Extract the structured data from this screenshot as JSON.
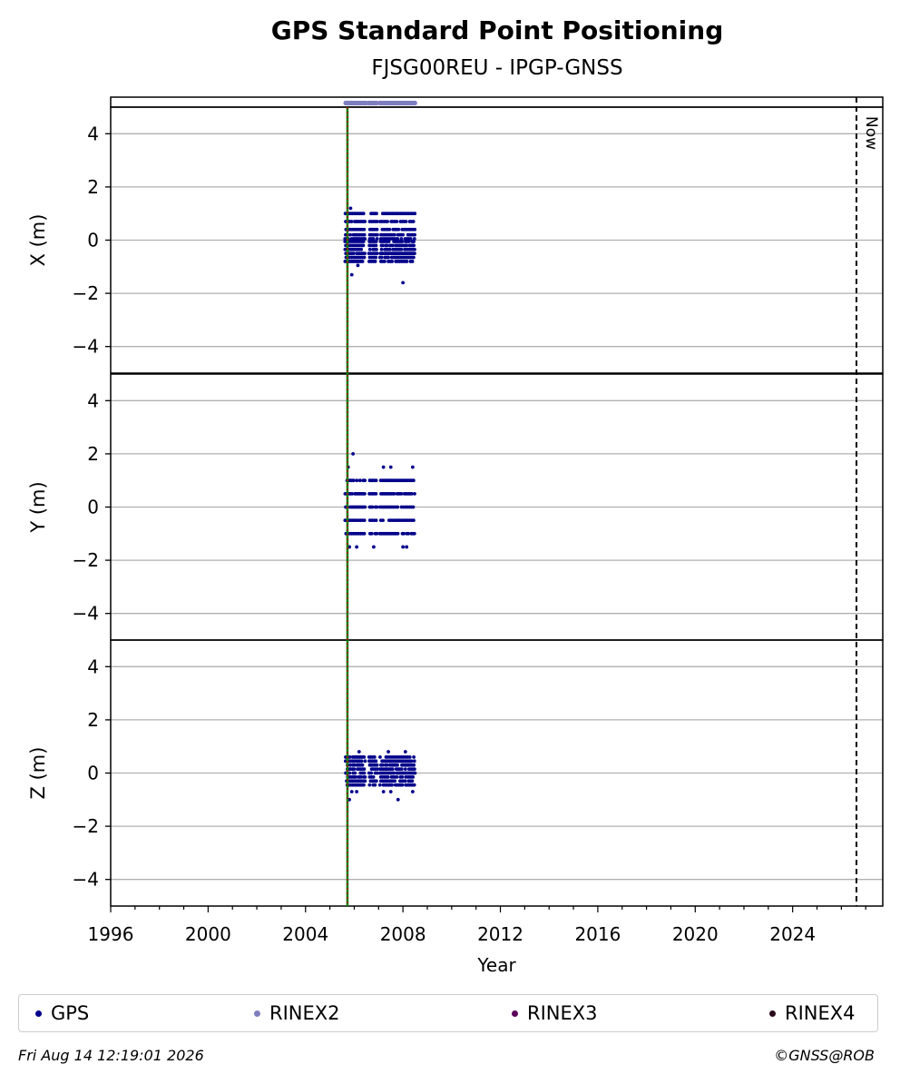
{
  "chart_data": {
    "type": "scatter",
    "title": "GPS Standard Point Positioning",
    "subtitle": "FJSG00REU - IPGP-GNSS",
    "xlabel": "Year",
    "xlim": [
      1996.0,
      2027.7
    ],
    "x_ticks": [
      "1996",
      "2000",
      "2004",
      "2008",
      "2012",
      "2016",
      "2020",
      "2024"
    ],
    "grid": true,
    "now_label": "Now",
    "now_year": 2026.62,
    "event_line_year": 2005.72,
    "panels": [
      {
        "ylabel": "X (m)",
        "ylim": [
          -5,
          5
        ],
        "y_ticks": [
          "4",
          "2",
          "0",
          "−2",
          "−4"
        ],
        "levels": [
          1.0,
          0.7,
          0.4,
          0.2,
          0.05,
          -0.05,
          -0.2,
          -0.35,
          -0.5,
          -0.65,
          -0.8
        ],
        "outliers": [
          [
            2005.85,
            1.2
          ],
          [
            2005.9,
            -1.3
          ],
          [
            2006.15,
            -0.95
          ],
          [
            2008.0,
            -1.6
          ]
        ]
      },
      {
        "ylabel": "Y (m)",
        "ylim": [
          -5,
          5
        ],
        "y_ticks": [
          "4",
          "2",
          "0",
          "−2",
          "−4"
        ],
        "levels": [
          1.0,
          0.5,
          0.0,
          -0.5,
          -1.0
        ],
        "outliers": [
          [
            2005.95,
            2.0
          ],
          [
            2005.75,
            1.5
          ],
          [
            2007.2,
            1.5
          ],
          [
            2007.5,
            1.5
          ],
          [
            2008.4,
            1.5
          ],
          [
            2005.8,
            -1.5
          ],
          [
            2006.1,
            -1.5
          ],
          [
            2006.8,
            -1.5
          ],
          [
            2008.0,
            -1.5
          ],
          [
            2008.15,
            -1.5
          ]
        ]
      },
      {
        "ylabel": "Z (m)",
        "ylim": [
          -5,
          5
        ],
        "y_ticks": [
          "4",
          "2",
          "0",
          "−2",
          "−4"
        ],
        "levels": [
          0.6,
          0.45,
          0.3,
          0.15,
          0.0,
          -0.15,
          -0.3,
          -0.45
        ],
        "outliers": [
          [
            2006.2,
            0.8
          ],
          [
            2007.4,
            0.8
          ],
          [
            2008.1,
            0.8
          ],
          [
            2005.9,
            -0.7
          ],
          [
            2006.1,
            -0.7
          ],
          [
            2007.2,
            -0.7
          ],
          [
            2007.5,
            -0.7
          ],
          [
            2008.4,
            -0.7
          ],
          [
            2005.8,
            -1.0
          ],
          [
            2007.8,
            -1.0
          ]
        ]
      }
    ],
    "gps_segments": [
      [
        2005.62,
        2006.45
      ],
      [
        2006.6,
        2006.95
      ],
      [
        2007.05,
        2008.5
      ]
    ],
    "rinex2_segments": [
      [
        2005.65,
        2006.5
      ],
      [
        2006.6,
        2006.95
      ],
      [
        2007.05,
        2008.5
      ]
    ],
    "series": [
      {
        "name": "GPS",
        "color": "#00008b"
      },
      {
        "name": "RINEX2",
        "color": "#7f7fbf"
      },
      {
        "name": "RINEX3",
        "color": "#5a005a"
      },
      {
        "name": "RINEX4",
        "color": "#2a0a1a"
      }
    ]
  },
  "footer": {
    "timestamp": "Fri Aug 14 12:19:01 2026",
    "copyright": "©GNSS@ROB"
  }
}
